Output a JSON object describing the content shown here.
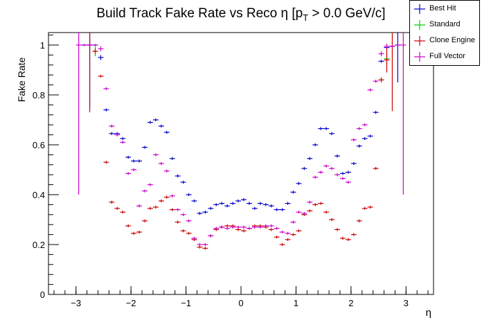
{
  "chart_data": {
    "type": "scatter",
    "title": "Build Track Fake Rate vs Reco η [p_T > 0.0 GeV/c]",
    "title_parts": {
      "pre": "Build Track Fake Rate vs Reco η [p",
      "sub": "T",
      "post": " > 0.0 GeV/c]"
    },
    "xlabel": "η",
    "ylabel": "Fake Rate",
    "xlim": [
      -3.5,
      3.5
    ],
    "ylim": [
      0,
      1.05
    ],
    "x_ticks": [
      -3,
      -2,
      -1,
      0,
      1,
      2,
      3
    ],
    "x_tick_labels": [
      "−3",
      "−2",
      "−1",
      "0",
      "1",
      "2",
      "3"
    ],
    "y_ticks": [
      0,
      0.2,
      0.4,
      0.6,
      0.8,
      1
    ],
    "y_tick_labels": [
      "0",
      "0.2",
      "0.4",
      "0.6",
      "0.8",
      "1"
    ],
    "grid": false,
    "legend_position": "top-right",
    "bin_half_width": 0.05,
    "series": [
      {
        "name": "Best Hit",
        "color": "#0000cc",
        "x": [
          -2.85,
          -2.75,
          -2.65,
          -2.55,
          -2.45,
          -2.35,
          -2.25,
          -2.15,
          -2.05,
          -1.95,
          -1.85,
          -1.75,
          -1.65,
          -1.55,
          -1.45,
          -1.35,
          -1.25,
          -1.15,
          -1.05,
          -0.95,
          -0.85,
          -0.75,
          -0.65,
          -0.55,
          -0.45,
          -0.35,
          -0.25,
          -0.15,
          -0.05,
          0.05,
          0.15,
          0.25,
          0.35,
          0.45,
          0.55,
          0.65,
          0.75,
          0.85,
          0.95,
          1.05,
          1.15,
          1.25,
          1.35,
          1.45,
          1.55,
          1.65,
          1.75,
          1.85,
          1.95,
          2.05,
          2.15,
          2.25,
          2.35,
          2.45,
          2.55,
          2.65,
          2.75,
          2.85
        ],
        "y": [
          1.0,
          1.0,
          1.0,
          0.95,
          0.74,
          0.645,
          0.645,
          0.625,
          0.55,
          0.535,
          0.535,
          0.59,
          0.69,
          0.7,
          0.675,
          0.65,
          0.545,
          0.475,
          0.45,
          0.4,
          0.375,
          0.325,
          0.33,
          0.345,
          0.36,
          0.365,
          0.355,
          0.365,
          0.375,
          0.38,
          0.365,
          0.345,
          0.365,
          0.36,
          0.355,
          0.34,
          0.34,
          0.365,
          0.41,
          0.445,
          0.505,
          0.545,
          0.6,
          0.665,
          0.665,
          0.645,
          0.555,
          0.485,
          0.49,
          0.525,
          0.595,
          0.625,
          0.635,
          0.73,
          0.935,
          0.99,
          0.995,
          1.0
        ],
        "err": [
          0,
          0.25,
          0,
          0.01,
          0.006,
          0.006,
          0.006,
          0.006,
          0.006,
          0.006,
          0.006,
          0.006,
          0.006,
          0.006,
          0.006,
          0.006,
          0.006,
          0.006,
          0.006,
          0.006,
          0.006,
          0.006,
          0.006,
          0.006,
          0.006,
          0.006,
          0.006,
          0.006,
          0.006,
          0.006,
          0.006,
          0.006,
          0.006,
          0.006,
          0.006,
          0.006,
          0.006,
          0.006,
          0.006,
          0.006,
          0.006,
          0.006,
          0.006,
          0.006,
          0.006,
          0.006,
          0.006,
          0.006,
          0.006,
          0.006,
          0.006,
          0.006,
          0.006,
          0.006,
          0.006,
          0.006,
          0.006,
          0.15
        ]
      },
      {
        "name": "Standard",
        "color": "#00cc00",
        "x": [
          -2.65,
          2.55,
          2.65
        ],
        "y": [
          0.975,
          0.86,
          0.945
        ],
        "err": [
          0.02,
          0.01,
          0.02
        ]
      },
      {
        "name": "Clone Engine",
        "color": "#cc0000",
        "x": [
          -2.75,
          -2.65,
          -2.55,
          -2.45,
          -2.35,
          -2.25,
          -2.15,
          -2.05,
          -1.95,
          -1.85,
          -1.75,
          -1.65,
          -1.55,
          -1.45,
          -1.35,
          -1.25,
          -1.15,
          -1.05,
          -0.95,
          -0.85,
          -0.75,
          -0.65,
          -0.55,
          -0.45,
          -0.35,
          -0.25,
          -0.15,
          -0.05,
          0.05,
          0.15,
          0.25,
          0.35,
          0.45,
          0.55,
          0.65,
          0.75,
          0.85,
          0.95,
          1.05,
          1.15,
          1.25,
          1.35,
          1.45,
          1.55,
          1.65,
          1.75,
          1.85,
          1.95,
          2.05,
          2.15,
          2.25,
          2.35,
          2.45,
          2.55,
          2.65,
          2.75
        ],
        "y": [
          1.0,
          0.975,
          0.875,
          0.53,
          0.37,
          0.345,
          0.33,
          0.275,
          0.245,
          0.25,
          0.295,
          0.345,
          0.35,
          0.375,
          0.39,
          0.34,
          0.29,
          0.255,
          0.245,
          0.22,
          0.19,
          0.185,
          0.235,
          0.26,
          0.27,
          0.275,
          0.275,
          0.26,
          0.255,
          0.265,
          0.275,
          0.275,
          0.27,
          0.26,
          0.23,
          0.2,
          0.22,
          0.24,
          0.255,
          0.32,
          0.335,
          0.36,
          0.365,
          0.33,
          0.3,
          0.26,
          0.225,
          0.22,
          0.24,
          0.295,
          0.345,
          0.35,
          0.505,
          0.86,
          0.94,
          0.995
        ],
        "err": [
          0.27,
          0.01,
          0.006,
          0.006,
          0.006,
          0.006,
          0.006,
          0.006,
          0.006,
          0.006,
          0.006,
          0.006,
          0.006,
          0.006,
          0.006,
          0.006,
          0.006,
          0.006,
          0.006,
          0.006,
          0.006,
          0.006,
          0.006,
          0.006,
          0.006,
          0.006,
          0.006,
          0.006,
          0.006,
          0.006,
          0.006,
          0.006,
          0.006,
          0.006,
          0.006,
          0.006,
          0.006,
          0.006,
          0.006,
          0.006,
          0.006,
          0.006,
          0.006,
          0.006,
          0.006,
          0.006,
          0.006,
          0.006,
          0.006,
          0.006,
          0.006,
          0.006,
          0.006,
          0.01,
          0.05,
          0.26
        ]
      },
      {
        "name": "Full Vector",
        "color": "#cc00cc",
        "x": [
          -2.95,
          -2.85,
          -2.75,
          -2.65,
          -2.55,
          -2.45,
          -2.35,
          -2.25,
          -2.15,
          -2.05,
          -1.95,
          -1.85,
          -1.75,
          -1.65,
          -1.55,
          -1.45,
          -1.35,
          -1.25,
          -1.15,
          -1.05,
          -0.95,
          -0.85,
          -0.75,
          -0.65,
          -0.55,
          -0.45,
          -0.35,
          -0.25,
          -0.15,
          -0.05,
          0.05,
          0.15,
          0.25,
          0.35,
          0.45,
          0.55,
          0.65,
          0.75,
          0.85,
          0.95,
          1.05,
          1.15,
          1.25,
          1.35,
          1.45,
          1.55,
          1.65,
          1.75,
          1.85,
          1.95,
          2.05,
          2.15,
          2.25,
          2.35,
          2.45,
          2.55,
          2.65,
          2.75,
          2.85,
          2.95
        ],
        "y": [
          1.0,
          1.0,
          1.0,
          1.0,
          0.985,
          0.825,
          0.675,
          0.64,
          0.61,
          0.485,
          0.5,
          0.355,
          0.415,
          0.44,
          0.56,
          0.525,
          0.495,
          0.395,
          0.34,
          0.32,
          0.295,
          0.225,
          0.2,
          0.2,
          0.235,
          0.265,
          0.27,
          0.265,
          0.27,
          0.27,
          0.27,
          0.265,
          0.27,
          0.27,
          0.275,
          0.275,
          0.265,
          0.25,
          0.245,
          0.29,
          0.33,
          0.325,
          0.37,
          0.47,
          0.49,
          0.515,
          0.505,
          0.48,
          0.465,
          0.45,
          0.62,
          0.665,
          0.68,
          0.82,
          0.855,
          0.965,
          0.995,
          0.995,
          1.0,
          1.0
        ],
        "err": [
          0.6,
          0,
          0,
          0,
          0.01,
          0.006,
          0.006,
          0.006,
          0.006,
          0.006,
          0.006,
          0.006,
          0.006,
          0.006,
          0.006,
          0.006,
          0.006,
          0.006,
          0.006,
          0.006,
          0.006,
          0.006,
          0.006,
          0.006,
          0.006,
          0.006,
          0.006,
          0.006,
          0.006,
          0.006,
          0.006,
          0.006,
          0.006,
          0.006,
          0.006,
          0.006,
          0.006,
          0.006,
          0.006,
          0.006,
          0.006,
          0.006,
          0.006,
          0.006,
          0.006,
          0.006,
          0.006,
          0.006,
          0.006,
          0.006,
          0.006,
          0.006,
          0.006,
          0.006,
          0.006,
          0.01,
          0.01,
          0,
          0,
          0.6
        ]
      }
    ]
  }
}
